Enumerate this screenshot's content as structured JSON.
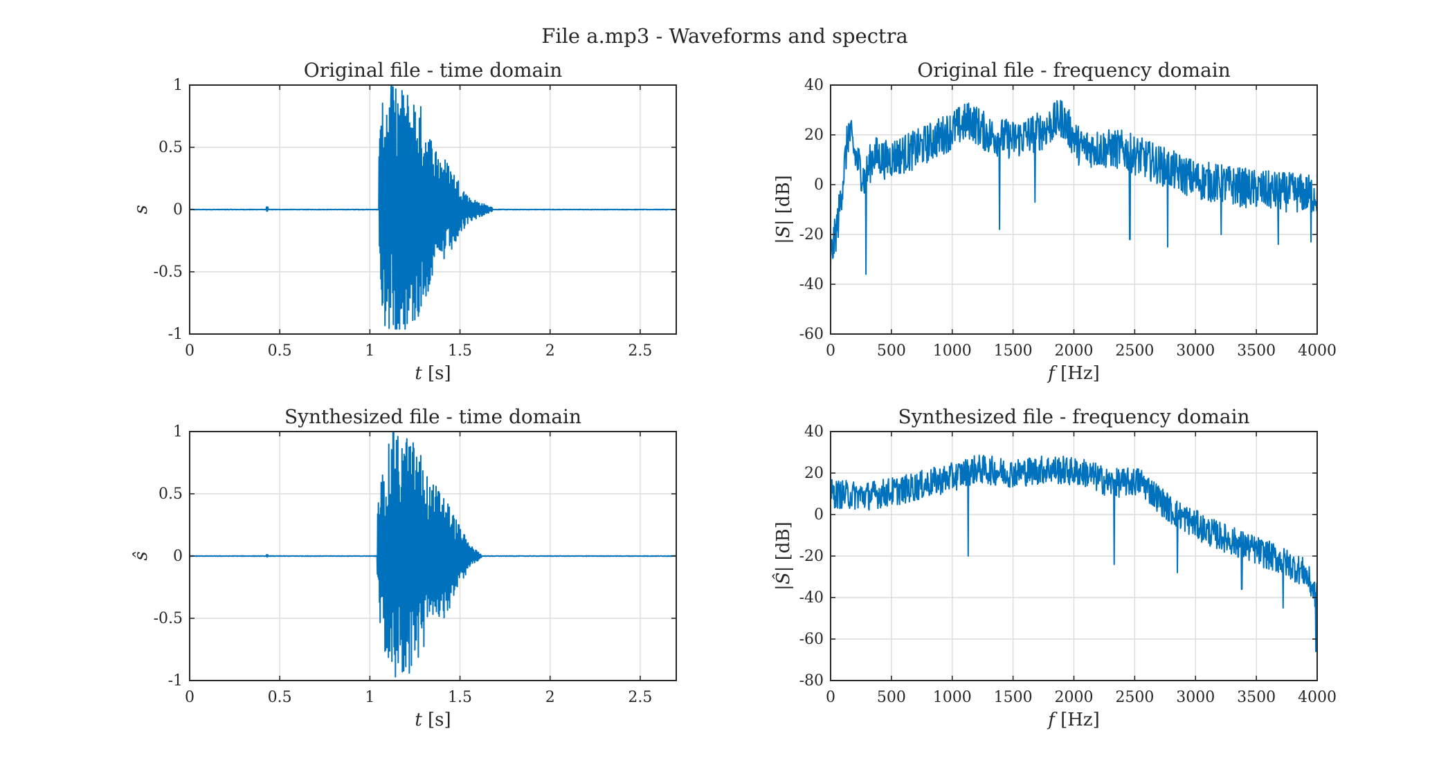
{
  "figure_title": "File a.mp3 - Waveforms and spectra",
  "colors": {
    "trace": "#0072BD",
    "axes": "#262626",
    "grid": "#dcdcdc"
  },
  "chart_data": [
    {
      "id": "orig-time",
      "type": "line",
      "title": "Original file - time domain",
      "xlabel_math": "t",
      "xlabel_text": " [s]",
      "ylabel_math": "s",
      "ylabel_text": "",
      "xlim": [
        0,
        2.7
      ],
      "ylim": [
        -1,
        1
      ],
      "xticks": [
        0,
        0.5,
        1,
        1.5,
        2,
        2.5
      ],
      "xtick_labels": [
        "0",
        "0.5",
        "1",
        "1.5",
        "2",
        "2.5"
      ],
      "yticks": [
        -1,
        -0.5,
        0,
        0.5,
        1
      ],
      "ytick_labels": [
        "-1",
        "-0.5",
        "0",
        "0.5",
        "1"
      ],
      "grid": true,
      "series": [
        {
          "kind": "waveform",
          "samples": 1400,
          "baseline_noise": 0.004,
          "blip_at": 0.43,
          "blip_amp": 0.02,
          "onset": 1.05,
          "peak_time": 1.12,
          "decay_end": 1.68,
          "peak_amp": 1.0,
          "min_amp": -0.96,
          "envelope": [
            [
              1.05,
              0.55
            ],
            [
              1.08,
              1.0
            ],
            [
              1.2,
              0.98
            ],
            [
              1.27,
              0.9
            ],
            [
              1.35,
              0.55
            ],
            [
              1.45,
              0.35
            ],
            [
              1.55,
              0.1
            ],
            [
              1.68,
              0.015
            ]
          ]
        }
      ]
    },
    {
      "id": "orig-freq",
      "type": "line",
      "title": "Original file - frequency domain",
      "xlabel_math": "f",
      "xlabel_text": " [Hz]",
      "ylabel_math": "|S|",
      "ylabel_text": " [dB]",
      "xlim": [
        0,
        4000
      ],
      "ylim": [
        -60,
        40
      ],
      "xticks": [
        0,
        500,
        1000,
        1500,
        2000,
        2500,
        3000,
        3500,
        4000
      ],
      "xtick_labels": [
        "0",
        "500",
        "1000",
        "1500",
        "2000",
        "2500",
        "3000",
        "3500",
        "4000"
      ],
      "yticks": [
        -60,
        -40,
        -20,
        0,
        20,
        40
      ],
      "ytick_labels": [
        "-60",
        "-40",
        "-20",
        "0",
        "20",
        "40"
      ],
      "grid": true,
      "series": [
        {
          "kind": "spectrum",
          "samples": 1100,
          "envelope": [
            [
              0,
              -30
            ],
            [
              60,
              -15
            ],
            [
              150,
              22
            ],
            [
              200,
              12
            ],
            [
              280,
              2
            ],
            [
              350,
              12
            ],
            [
              450,
              10
            ],
            [
              700,
              14
            ],
            [
              1000,
              22
            ],
            [
              1150,
              26
            ],
            [
              1300,
              20
            ],
            [
              1500,
              18
            ],
            [
              1750,
              22
            ],
            [
              1900,
              27
            ],
            [
              2050,
              15
            ],
            [
              2400,
              14
            ],
            [
              2700,
              8
            ],
            [
              3000,
              2
            ],
            [
              3500,
              -2
            ],
            [
              4000,
              -4
            ]
          ],
          "spread": 8,
          "dips": [
            [
              290,
              -36
            ],
            [
              1390,
              -18
            ],
            [
              1680,
              -7
            ],
            [
              2460,
              -22
            ],
            [
              2770,
              -25
            ],
            [
              3210,
              -20
            ],
            [
              3680,
              -24
            ],
            [
              3950,
              -23
            ]
          ]
        }
      ]
    },
    {
      "id": "synth-time",
      "type": "line",
      "title": "Synthesized file - time domain",
      "xlabel_math": "t",
      "xlabel_text": " [s]",
      "ylabel_math": "ŝ",
      "ylabel_text": "",
      "xlim": [
        0,
        2.7
      ],
      "ylim": [
        -1,
        1
      ],
      "xticks": [
        0,
        0.5,
        1,
        1.5,
        2,
        2.5
      ],
      "xtick_labels": [
        "0",
        "0.5",
        "1",
        "1.5",
        "2",
        "2.5"
      ],
      "yticks": [
        -1,
        -0.5,
        0,
        0.5,
        1
      ],
      "ytick_labels": [
        "-1",
        "-0.5",
        "0",
        "0.5",
        "1"
      ],
      "grid": true,
      "series": [
        {
          "kind": "waveform",
          "samples": 1400,
          "baseline_noise": 0.004,
          "blip_at": 0.43,
          "blip_amp": 0.01,
          "onset": 1.04,
          "peak_time": 1.13,
          "decay_end": 1.62,
          "peak_amp": 1.0,
          "min_amp": -0.97,
          "envelope": [
            [
              1.04,
              0.4
            ],
            [
              1.08,
              0.8
            ],
            [
              1.13,
              1.0
            ],
            [
              1.2,
              0.98
            ],
            [
              1.27,
              0.9
            ],
            [
              1.33,
              0.6
            ],
            [
              1.4,
              0.55
            ],
            [
              1.48,
              0.3
            ],
            [
              1.55,
              0.1
            ],
            [
              1.62,
              0.01
            ]
          ]
        }
      ]
    },
    {
      "id": "synth-freq",
      "type": "line",
      "title": "Synthesized file - frequency domain",
      "xlabel_math": "f",
      "xlabel_text": " [Hz]",
      "ylabel_math": "|Ŝ|",
      "ylabel_text": " [dB]",
      "xlim": [
        0,
        4000
      ],
      "ylim": [
        -80,
        40
      ],
      "xticks": [
        0,
        500,
        1000,
        1500,
        2000,
        2500,
        3000,
        3500,
        4000
      ],
      "xtick_labels": [
        "0",
        "500",
        "1000",
        "1500",
        "2000",
        "2500",
        "3000",
        "3500",
        "4000"
      ],
      "yticks": [
        -80,
        -60,
        -40,
        -20,
        0,
        20,
        40
      ],
      "ytick_labels": [
        "-80",
        "-60",
        "-40",
        "-20",
        "0",
        "20",
        "40"
      ],
      "grid": true,
      "series": [
        {
          "kind": "spectrum",
          "samples": 1100,
          "envelope": [
            [
              0,
              10
            ],
            [
              300,
              9
            ],
            [
              600,
              12
            ],
            [
              1000,
              18
            ],
            [
              1200,
              22
            ],
            [
              1500,
              20
            ],
            [
              1800,
              22
            ],
            [
              2100,
              20
            ],
            [
              2300,
              15
            ],
            [
              2550,
              16
            ],
            [
              2800,
              2
            ],
            [
              3100,
              -8
            ],
            [
              3400,
              -15
            ],
            [
              3700,
              -22
            ],
            [
              3900,
              -28
            ],
            [
              4000,
              -40
            ]
          ],
          "spread": 7,
          "dips": [
            [
              1130,
              -20
            ],
            [
              2330,
              -24
            ],
            [
              2850,
              -28
            ],
            [
              3380,
              -36
            ],
            [
              3720,
              -45
            ],
            [
              3990,
              -66
            ]
          ]
        }
      ]
    }
  ]
}
